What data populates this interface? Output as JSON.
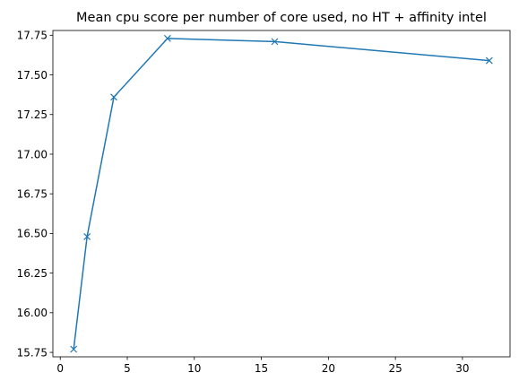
{
  "chart_data": {
    "type": "line",
    "title": "Mean cpu score per number of core used, no HT + affinity intel",
    "xlabel": "",
    "ylabel": "",
    "xlim": [
      -0.55,
      33.55
    ],
    "ylim": [
      15.722,
      17.78
    ],
    "x_ticks": [
      0,
      5,
      10,
      15,
      20,
      25,
      30
    ],
    "x_tick_labels": [
      "0",
      "5",
      "10",
      "15",
      "20",
      "25",
      "30"
    ],
    "y_ticks": [
      15.75,
      16.0,
      16.25,
      16.5,
      16.75,
      17.0,
      17.25,
      17.5,
      17.75
    ],
    "y_tick_labels": [
      "15.75",
      "16.00",
      "16.25",
      "16.50",
      "16.75",
      "17.00",
      "17.25",
      "17.50",
      "17.75"
    ],
    "grid": false,
    "series": [
      {
        "color": "#1f77b4",
        "marker": "x",
        "x": [
          1,
          2,
          4,
          8,
          16,
          32
        ],
        "y": [
          15.77,
          16.48,
          17.36,
          17.73,
          17.71,
          17.59
        ]
      }
    ]
  }
}
